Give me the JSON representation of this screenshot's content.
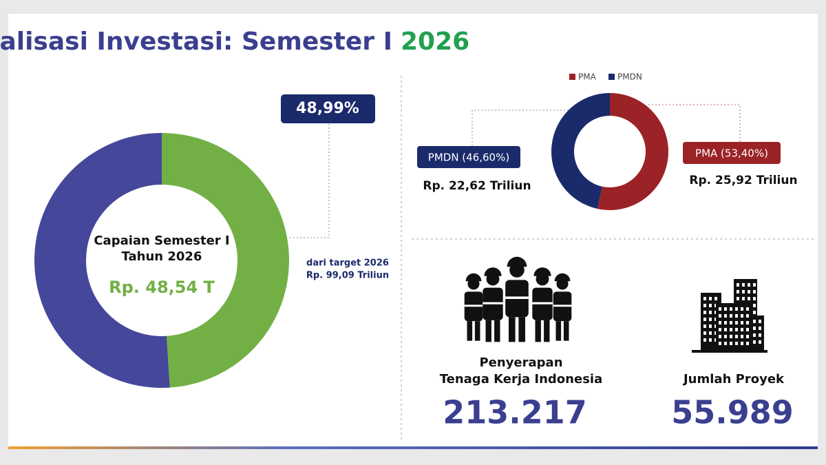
{
  "title": "Capaian Realisasi Investasi: Semester I",
  "title_year": "2026",
  "chart_data": [
    {
      "type": "donut",
      "values": [
        48.99,
        51.01
      ],
      "value_labels": [
        "48,99%",
        null
      ],
      "colors": [
        "#72b045",
        "#45479a"
      ],
      "center_text": [
        "Capaian Semester I",
        "Tahun 2026"
      ],
      "center_value": "Rp. 48,54 T",
      "annotation": [
        "dari target 2026",
        "Rp. 99,09 Triliun"
      ]
    },
    {
      "type": "donut",
      "categories": [
        "PMA",
        "PMDN"
      ],
      "values": [
        53.4,
        46.6
      ],
      "value_labels": [
        "PMA (53,40%)",
        "PMDN (46,60%)"
      ],
      "amounts": [
        "Rp. 25,92 Triliun",
        "Rp. 22,62 Triliun"
      ],
      "colors": [
        "#9b2226",
        "#1b2a6b"
      ]
    }
  ],
  "stats": [
    {
      "label": [
        "Penyerapan",
        "Tenaga Kerja Indonesia"
      ],
      "value": "213.217"
    },
    {
      "label": [
        "Jumlah Proyek"
      ],
      "value": "55.989"
    }
  ]
}
